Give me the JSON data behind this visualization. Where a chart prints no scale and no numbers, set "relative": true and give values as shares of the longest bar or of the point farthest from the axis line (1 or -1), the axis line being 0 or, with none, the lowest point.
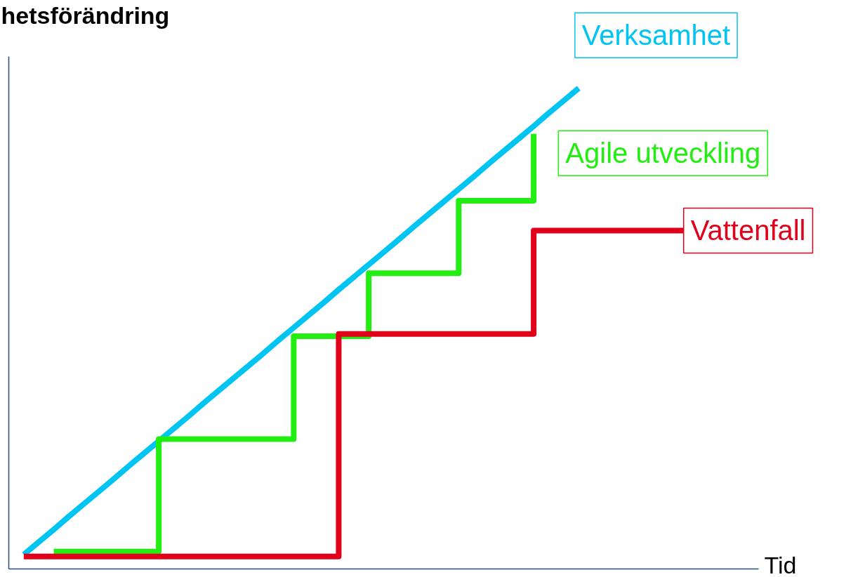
{
  "chart_data": {
    "type": "line",
    "relative": true,
    "ylabel": "hetsförändring",
    "xlabel": "Tid",
    "line_style": "solid",
    "categories": [
      null,
      null,
      null,
      null,
      null,
      null,
      null,
      null,
      null,
      null,
      null,
      null,
      null,
      null,
      null,
      null,
      null,
      null,
      null,
      null,
      null,
      null,
      null,
      null,
      null,
      null,
      null,
      null,
      null,
      null,
      null,
      null,
      null,
      null,
      null,
      null,
      null,
      null,
      null,
      null,
      null,
      null,
      null,
      null,
      null,
      null,
      null,
      null,
      null,
      null,
      null
    ],
    "series": [
      {
        "name": "Verksamhet",
        "color": "#00c4f2",
        "values": [
          null,
          0.03,
          0.056,
          0.082,
          0.109,
          0.135,
          0.161,
          0.187,
          0.214,
          0.24,
          0.266,
          0.292,
          0.318,
          0.345,
          0.371,
          0.397,
          0.423,
          0.449,
          0.476,
          0.502,
          0.528,
          0.554,
          0.581,
          0.607,
          0.633,
          0.659,
          0.685,
          0.712,
          0.738,
          0.764,
          0.79,
          0.816,
          0.843,
          0.869,
          0.895,
          0.921,
          0.948,
          0.974,
          1.0,
          null,
          null,
          null,
          null,
          null,
          null,
          null,
          null,
          null,
          null,
          null,
          null
        ]
      },
      {
        "name": "Agile utveckling",
        "color": "#22ee11",
        "type": "step",
        "values": [
          null,
          null,
          null,
          0.036,
          0.036,
          0.036,
          0.036,
          0.036,
          0.036,
          0.036,
          0.27,
          0.27,
          0.27,
          0.27,
          0.27,
          0.27,
          0.27,
          0.27,
          0.27,
          0.484,
          0.484,
          0.484,
          0.484,
          0.484,
          0.615,
          0.615,
          0.615,
          0.615,
          0.615,
          0.615,
          0.766,
          0.766,
          0.766,
          0.766,
          0.766,
          0.905,
          null,
          null,
          null,
          null,
          null,
          null,
          null,
          null,
          null,
          null,
          null,
          null,
          null,
          null,
          null
        ]
      },
      {
        "name": "Vattenfall",
        "color": "#e0001a",
        "type": "step",
        "values": [
          null,
          0.026,
          0.026,
          0.026,
          0.026,
          0.026,
          0.026,
          0.026,
          0.026,
          0.026,
          0.026,
          0.026,
          0.026,
          0.026,
          0.026,
          0.026,
          0.026,
          0.026,
          0.026,
          0.026,
          0.026,
          0.026,
          0.489,
          0.489,
          0.489,
          0.489,
          0.489,
          0.489,
          0.489,
          0.489,
          0.489,
          0.489,
          0.489,
          0.489,
          0.489,
          0.704,
          0.704,
          0.704,
          0.704,
          0.704,
          0.704,
          0.704,
          0.704,
          0.704,
          0.704,
          0.704,
          null,
          null,
          null,
          null,
          null
        ]
      }
    ]
  }
}
